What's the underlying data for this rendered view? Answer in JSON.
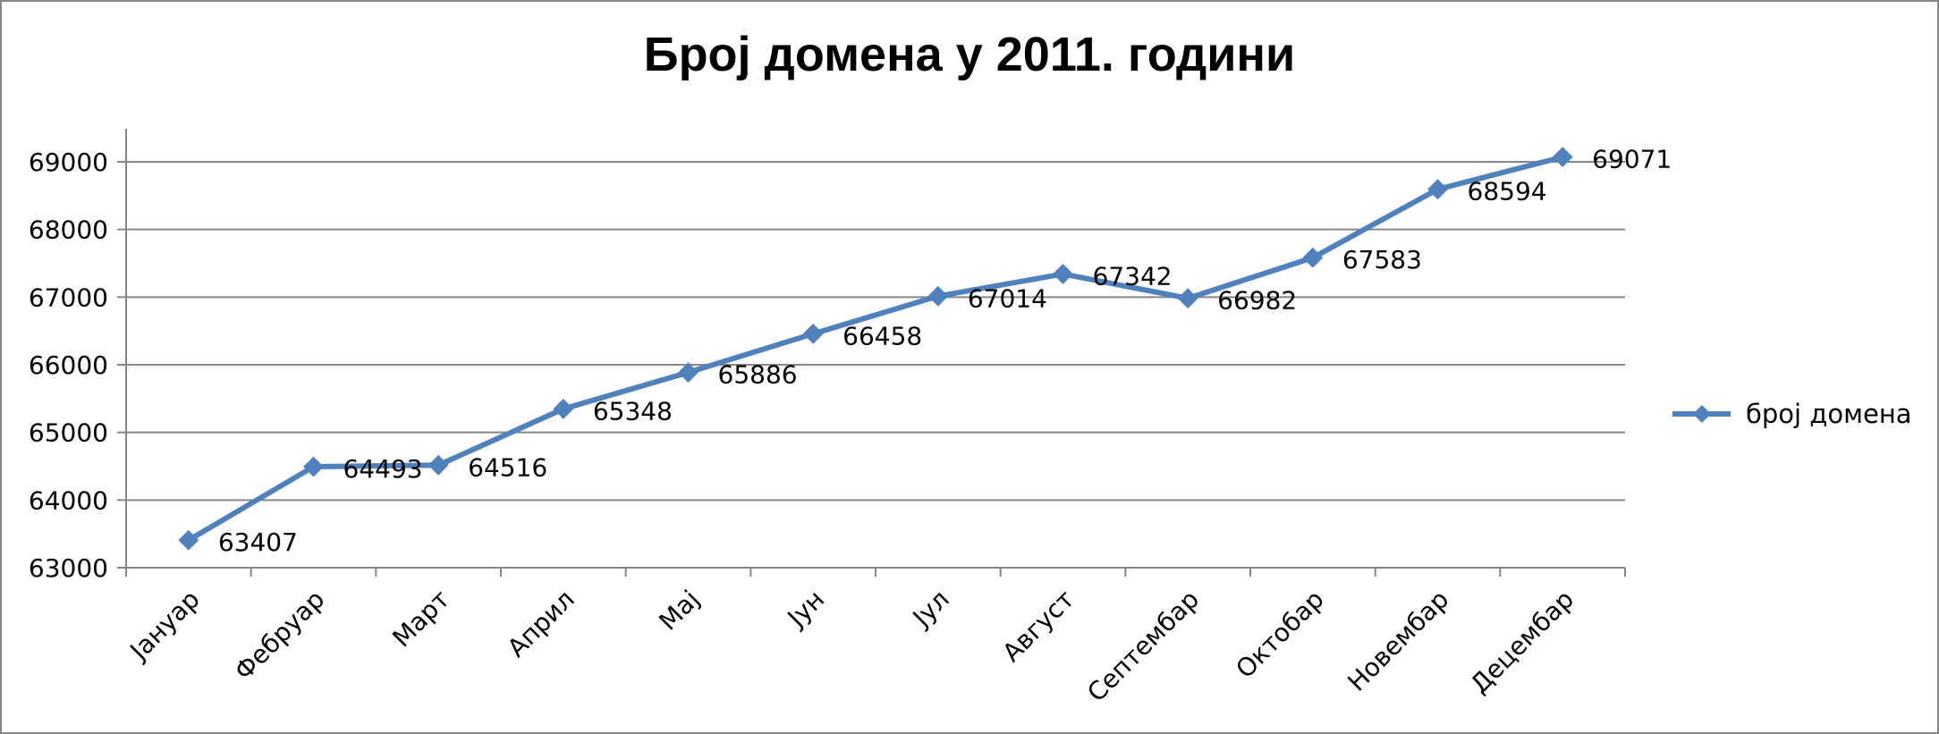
{
  "chart_data": {
    "type": "line",
    "title": "Број домена у 2011. години",
    "categories": [
      "Јануар",
      "Фебруар",
      "Март",
      "Април",
      "Мај",
      "Јун",
      "Јул",
      "Август",
      "Септембар",
      "Октобар",
      "Новембар",
      "Децембар"
    ],
    "series": [
      {
        "name": "број домена",
        "values": [
          63407,
          64493,
          64516,
          65348,
          65886,
          66458,
          67014,
          67342,
          66982,
          67583,
          68594,
          69071
        ]
      }
    ],
    "ylim": [
      63000,
      69500
    ],
    "yticks": [
      63000,
      64000,
      65000,
      66000,
      67000,
      68000,
      69000
    ],
    "grid": true,
    "legend_position": "right",
    "colors": {
      "series": "#4F81BD",
      "grid": "#868686",
      "axis": "#868686"
    }
  }
}
